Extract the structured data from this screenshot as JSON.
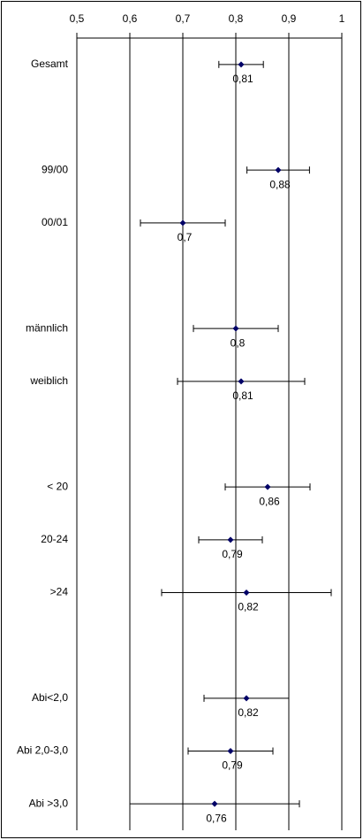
{
  "chart_data": {
    "type": "dot-errorbar",
    "categories": [
      "Gesamt",
      null,
      "99/00",
      "00/01",
      null,
      "männlich",
      "weiblich",
      null,
      "< 20",
      "20-24",
      ">24",
      null,
      "Abi<2,0",
      "Abi 2,0-3,0",
      "Abi >3,0"
    ],
    "values": [
      0.81,
      null,
      0.88,
      0.7,
      null,
      0.8,
      0.81,
      null,
      0.86,
      0.79,
      0.82,
      null,
      0.82,
      0.79,
      0.76
    ],
    "value_labels": [
      "0,81",
      null,
      "0,88",
      "0,7",
      null,
      "0,8",
      "0,81",
      null,
      "0,86",
      "0,79",
      "0,82",
      null,
      "0,82",
      "0,79",
      "0,76"
    ],
    "errors": [
      0.042,
      null,
      0.059,
      0.08,
      null,
      0.08,
      0.12,
      null,
      0.08,
      0.06,
      0.16,
      null,
      0.08,
      0.08,
      0.16
    ],
    "color": "#000066",
    "xlim": [
      0.5,
      1
    ],
    "xticks": [
      {
        "value": 0.5,
        "label": "0,5"
      },
      {
        "value": 0.6,
        "label": "0,6"
      },
      {
        "value": 0.7,
        "label": "0,7"
      },
      {
        "value": 0.8,
        "label": "0,8"
      },
      {
        "value": 0.9,
        "label": "0,9"
      },
      1
    ],
    "grid": true
  }
}
